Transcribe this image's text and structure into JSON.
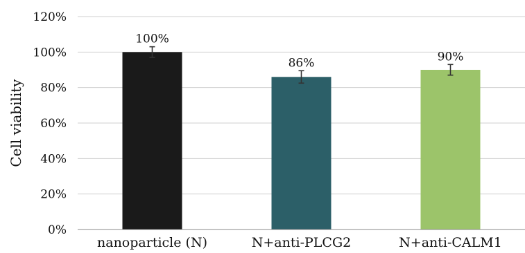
{
  "chart_data": {
    "type": "bar",
    "title": "",
    "xlabel": "",
    "ylabel": "Cell viability",
    "categories": [
      "nanoparticle (N)",
      "N+anti-PLCG2",
      "N+anti-CALM1"
    ],
    "values": [
      100,
      86,
      90
    ],
    "errors": [
      3,
      3.5,
      3
    ],
    "data_labels": [
      "100%",
      "86%",
      "90%"
    ],
    "colors": [
      "#1a1a1a",
      "#2c5f68",
      "#9cc46a"
    ],
    "ylim": [
      0,
      120
    ],
    "y_ticks": [
      "0%",
      "20%",
      "40%",
      "60%",
      "80%",
      "100%",
      "120%"
    ],
    "grid": true,
    "legend": "none"
  }
}
